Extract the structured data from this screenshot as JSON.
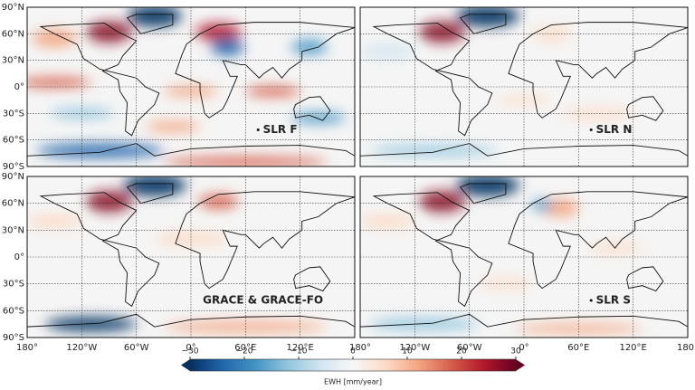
{
  "panels": [
    {
      "label": "SLR F"
    },
    {
      "label": "SLR N"
    },
    {
      "label": "GRACE & GRACE-FO"
    },
    {
      "label": "SLR S"
    }
  ],
  "lat_ticks": [
    {
      "value": 90,
      "label": "90°N"
    },
    {
      "value": 60,
      "label": "60°N"
    },
    {
      "value": 30,
      "label": "30°N"
    },
    {
      "value": 0,
      "label": "0°"
    },
    {
      "value": -30,
      "label": "30°S"
    },
    {
      "value": -60,
      "label": "60°S"
    },
    {
      "value": -90,
      "label": "90°S"
    }
  ],
  "lon_ticks": [
    {
      "value": -180,
      "label": "180°"
    },
    {
      "value": -120,
      "label": "120°W"
    },
    {
      "value": -60,
      "label": "60°W"
    },
    {
      "value": 0,
      "label": "0°"
    },
    {
      "value": 60,
      "label": "60°E"
    },
    {
      "value": 120,
      "label": "120°E"
    },
    {
      "value": 180,
      "label": "180°"
    }
  ],
  "colorbar": {
    "label": "EWH [mm/year]",
    "lim": [
      -30,
      30
    ],
    "ticks": [
      {
        "value": -30,
        "label": "−30"
      },
      {
        "value": -20,
        "label": "−20"
      },
      {
        "value": -10,
        "label": "−10"
      },
      0,
      10,
      20,
      30
    ]
  }
}
